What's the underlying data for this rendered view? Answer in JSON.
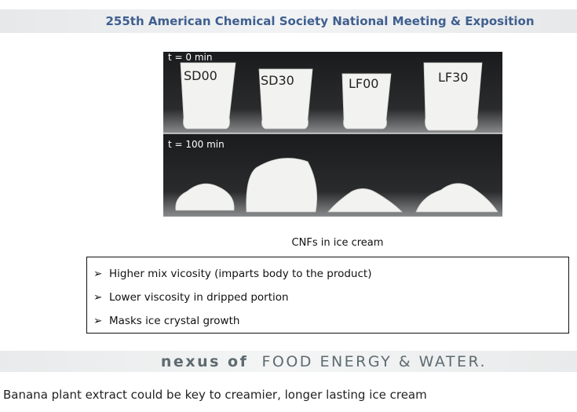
{
  "header": {
    "title": "255th American Chemical Society National Meeting & Exposition"
  },
  "photo": {
    "top_label": "t = 0 min",
    "bottom_label": "t = 100 min",
    "samples": [
      "SD00",
      "SD30",
      "LF00",
      "LF30"
    ]
  },
  "slide": {
    "caption": "CNFs in ice cream",
    "bullets": [
      "Higher mix vicosity (imparts body to the product)",
      "Lower viscosity in dripped portion",
      "Masks ice crystal growth"
    ]
  },
  "footer": {
    "lead": "nexus of",
    "rest": "FOOD ENERGY & WATER."
  },
  "article": {
    "headline": "Banana plant extract could be key to creamier, longer lasting ice cream"
  }
}
